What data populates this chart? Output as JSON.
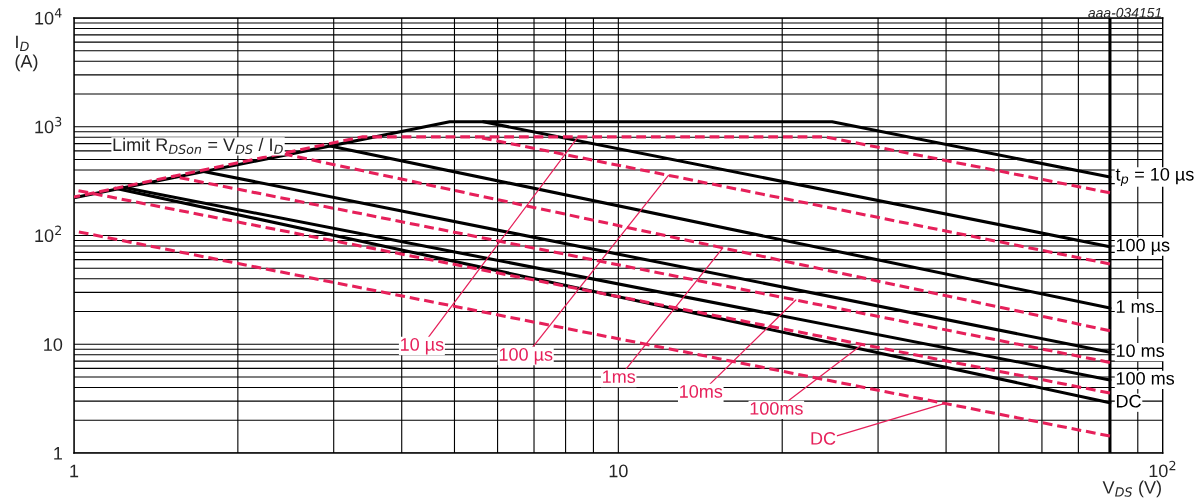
{
  "chart_data": {
    "type": "line",
    "xlabel": "V$_{DS}$ (V)",
    "ylabel": "I$_{D}$ (A)",
    "log": "xy",
    "grid": true,
    "marker": "none",
    "xlim": [
      1,
      100
    ],
    "xticks": [
      1,
      10,
      {
        "value": 100,
        "label": "10$^{2}$"
      }
    ],
    "ylim": [
      1,
      10000
    ],
    "yticks": [
      1,
      10,
      {
        "value": 100,
        "label": "10$^{2}$"
      },
      {
        "value": 1000,
        "label": "10$^{3}$"
      },
      {
        "value": 10000,
        "label": "10$^{4}$"
      }
    ],
    "ref_lines": [
      {
        "axis": "x",
        "value": 80,
        "color": "#000000",
        "line_style": "solid"
      }
    ],
    "annotations": [
      "Limit R$_{DSon}$ = V$_{DS}$ / I$_{D}$",
      "aaa-034151"
    ],
    "series": [
      {
        "name": "t$_{p}$ = 10 µs",
        "color": "#000000",
        "line_style": "solid",
        "x": [
          1,
          4.9,
          24.7,
          80
        ],
        "values": [
          222,
          1110,
          1110,
          345
        ]
      },
      {
        "name": "100 µs",
        "color": "#000000",
        "line_style": "solid",
        "x": [
          5.65,
          80
        ],
        "values": [
          1110,
          79
        ]
      },
      {
        "name": "1 ms",
        "color": "#000000",
        "line_style": "solid",
        "x": [
          2.94,
          80
        ],
        "values": [
          670,
          21.5
        ]
      },
      {
        "name": "10 ms",
        "color": "#000000",
        "line_style": "solid",
        "x": [
          1.73,
          80
        ],
        "values": [
          388,
          8.45
        ]
      },
      {
        "name": "100 ms",
        "color": "#000000",
        "line_style": "solid",
        "x": [
          1.23,
          80
        ],
        "values": [
          278,
          4.7
        ]
      },
      {
        "name": "DC",
        "color": "#000000",
        "line_style": "solid",
        "x": [
          1.19,
          80
        ],
        "values": [
          272,
          2.9
        ]
      },
      {
        "name": "10 µs",
        "color": "#e6205a",
        "line_style": "dashed",
        "x": [
          1,
          3.38,
          24,
          80
        ],
        "values": [
          226,
          807,
          807,
          247
        ]
      },
      {
        "name": "100 µs",
        "color": "#e6205a",
        "line_style": "dashed",
        "x": [
          5.5,
          80
        ],
        "values": [
          807,
          54.7
        ]
      },
      {
        "name": "1ms",
        "color": "#e6205a",
        "line_style": "dashed",
        "x": [
          2.44,
          80
        ],
        "values": [
          560,
          13.3
        ]
      },
      {
        "name": "10ms",
        "color": "#e6205a",
        "line_style": "dashed",
        "x": [
          1.52,
          80
        ],
        "values": [
          350,
          6.8
        ]
      },
      {
        "name": "100ms",
        "color": "#e6205a",
        "line_style": "dashed",
        "x": [
          1,
          80
        ],
        "values": [
          263,
          3.56
        ]
      },
      {
        "name": "DC",
        "color": "#e6205a",
        "line_style": "dashed",
        "x": [
          1,
          80
        ],
        "values": [
          110,
          1.43
        ]
      }
    ]
  }
}
